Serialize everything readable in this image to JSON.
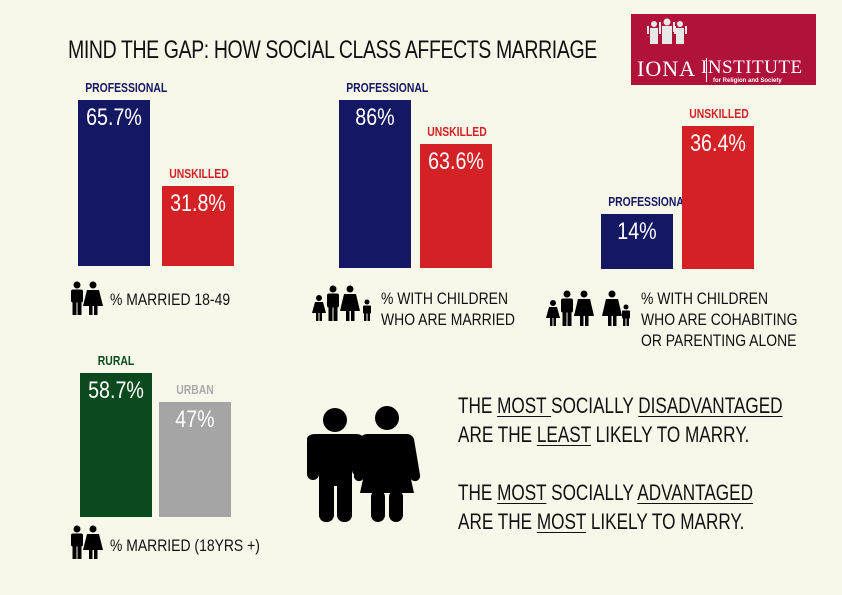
{
  "title": "MIND THE GAP: HOW SOCIAL CLASS AFFECTS MARRIAGE",
  "logo": {
    "name": "IONA",
    "name2": "INSTITUTE",
    "tagline": "for Religion and Society",
    "color": "#b0123a"
  },
  "colors": {
    "professional": "#141761",
    "unskilled": "#d42125",
    "rural": "#0b4a1f",
    "urban": "#a5a5a5",
    "background": "#f8f8ea"
  },
  "chart_data": [
    {
      "type": "bar",
      "title": "% MARRIED 18-49",
      "categories": [
        "PROFESSIONAL",
        "UNSKILLED"
      ],
      "values": [
        65.7,
        31.8
      ],
      "labels": [
        "65.7%",
        "31.8%"
      ],
      "icon": "couple-icon"
    },
    {
      "type": "bar",
      "title": "% WITH CHILDREN WHO ARE MARRIED",
      "title_lines": [
        "% WITH CHILDREN",
        "WHO ARE MARRIED"
      ],
      "categories": [
        "PROFESSIONAL",
        "UNSKILLED"
      ],
      "values": [
        86,
        63.6
      ],
      "labels": [
        "86%",
        "63.6%"
      ],
      "icon": "family-icon"
    },
    {
      "type": "bar",
      "title": "% WITH CHILDREN WHO ARE COHABITING OR PARENTING ALONE",
      "title_lines": [
        "% WITH CHILDREN",
        "WHO ARE COHABITING",
        "OR PARENTING ALONE"
      ],
      "categories": [
        "PROFESSIONAL",
        "UNSKILLED"
      ],
      "values": [
        14,
        36.4
      ],
      "labels": [
        "14%",
        "36.4%"
      ],
      "icon": "family-and-single-parent-icon"
    },
    {
      "type": "bar",
      "title": "% MARRIED (18YRS +)",
      "categories": [
        "RURAL",
        "URBAN"
      ],
      "values": [
        58.7,
        47
      ],
      "labels": [
        "58.7%",
        "47%"
      ],
      "icon": "couple-icon"
    }
  ],
  "messages": [
    {
      "line1": [
        "THE ",
        "MOST ",
        "SOCIALLY ",
        "DISADVANTAGED "
      ],
      "line2": [
        "ARE THE ",
        "LEAST",
        " LIKELY TO MARRY."
      ]
    },
    {
      "line1": [
        "THE ",
        "MOST",
        " SOCIALLY ",
        "ADVANTAGED"
      ],
      "line2": [
        "ARE THE ",
        "MOST",
        " LIKELY TO MARRY."
      ]
    }
  ]
}
